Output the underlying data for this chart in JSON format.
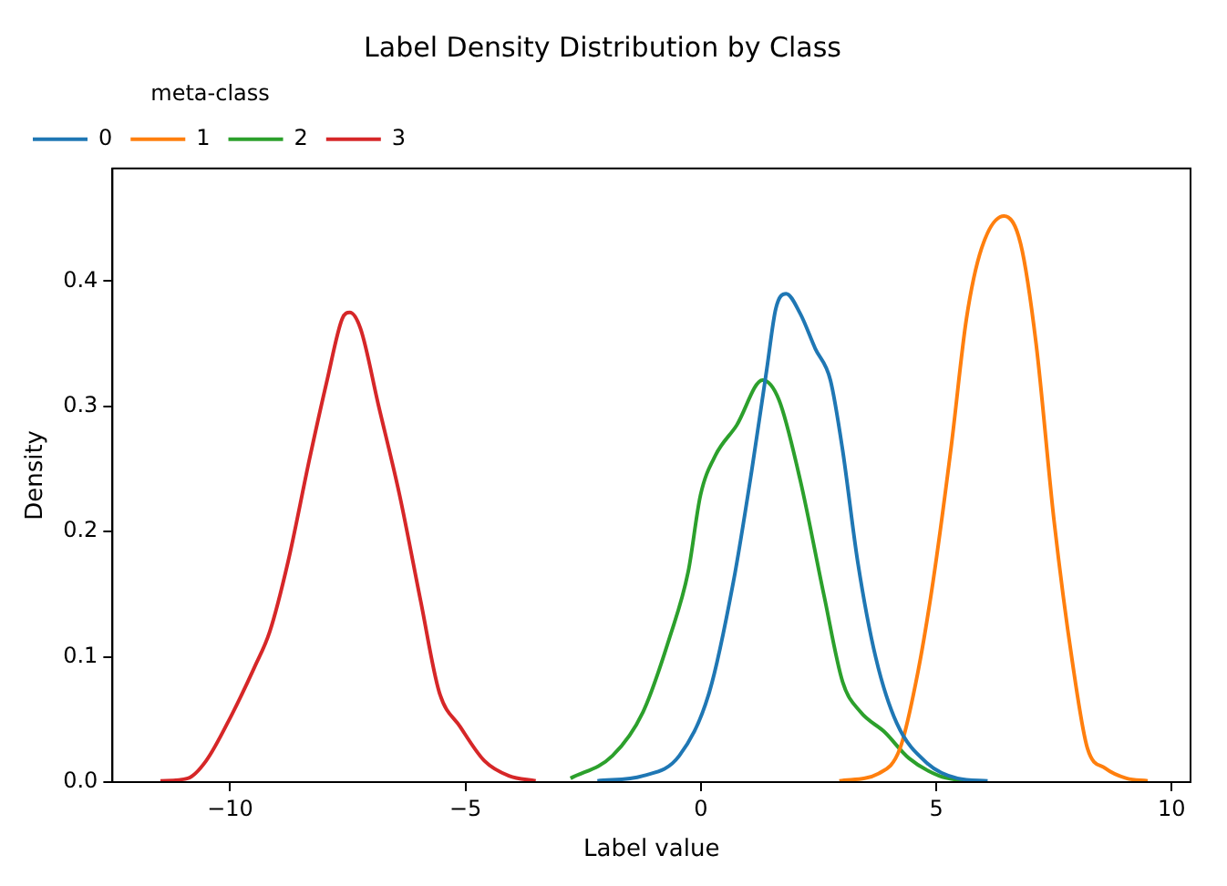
{
  "chart_data": {
    "type": "line",
    "title": "Label Density Distribution by Class",
    "xlabel": "Label value",
    "ylabel": "Density",
    "legend_title": "meta-class",
    "legend": "top left",
    "grid": false,
    "marker": "none",
    "line_style": "solid",
    "xlim": [
      -12.5,
      10.4
    ],
    "xticks": [
      -10,
      -5,
      0,
      5,
      10
    ],
    "ylim": [
      0,
      0.49
    ],
    "yticks": [
      {
        "value": 0,
        "label": "0.0"
      },
      0.1,
      0.2,
      0.3,
      0.4
    ],
    "series": [
      {
        "name": "0",
        "color": "#1f77b4",
        "x": [
          -2.2,
          -1.23,
          -0.46,
          0.18,
          0.69,
          1.08,
          1.4,
          1.59,
          1.81,
          2.11,
          2.43,
          2.75,
          3.01,
          3.33,
          3.71,
          4.16,
          4.81,
          5.45,
          6.09
        ],
        "values": [
          0.001,
          0.005,
          0.021,
          0.072,
          0.16,
          0.249,
          0.33,
          0.378,
          0.39,
          0.374,
          0.346,
          0.321,
          0.265,
          0.176,
          0.1,
          0.047,
          0.015,
          0.003,
          0.001
        ]
      },
      {
        "name": "1",
        "color": "#ff7f0e",
        "x": [
          2.94,
          3.78,
          4.23,
          4.61,
          4.93,
          5.32,
          5.64,
          5.96,
          6.44,
          6.79,
          7.12,
          7.5,
          7.89,
          8.21,
          8.59,
          9.04,
          9.49
        ],
        "values": [
          0.001,
          0.007,
          0.027,
          0.088,
          0.16,
          0.269,
          0.37,
          0.426,
          0.452,
          0.43,
          0.35,
          0.209,
          0.096,
          0.027,
          0.011,
          0.003,
          0.001
        ]
      },
      {
        "name": "2",
        "color": "#2ca02c",
        "x": [
          -2.77,
          -1.88,
          -1.23,
          -0.66,
          -0.27,
          -0.01,
          0.31,
          0.76,
          1.31,
          1.66,
          2.11,
          2.62,
          3.01,
          3.39,
          3.9,
          4.42,
          5.06,
          5.58
        ],
        "values": [
          0.003,
          0.021,
          0.056,
          0.116,
          0.168,
          0.229,
          0.261,
          0.285,
          0.321,
          0.305,
          0.241,
          0.148,
          0.08,
          0.056,
          0.04,
          0.019,
          0.005,
          0.001
        ]
      },
      {
        "name": "3",
        "color": "#d62728",
        "x": [
          -11.48,
          -10.9,
          -10.51,
          -9.99,
          -9.48,
          -9.16,
          -8.77,
          -8.32,
          -7.94,
          -7.62,
          -7.46,
          -7.23,
          -6.85,
          -6.4,
          -5.95,
          -5.56,
          -5.11,
          -4.6,
          -4.08,
          -3.51
        ],
        "values": [
          0.001,
          0.003,
          0.017,
          0.052,
          0.092,
          0.12,
          0.176,
          0.257,
          0.321,
          0.37,
          0.375,
          0.362,
          0.301,
          0.229,
          0.144,
          0.072,
          0.044,
          0.017,
          0.005,
          0.001
        ]
      }
    ]
  }
}
